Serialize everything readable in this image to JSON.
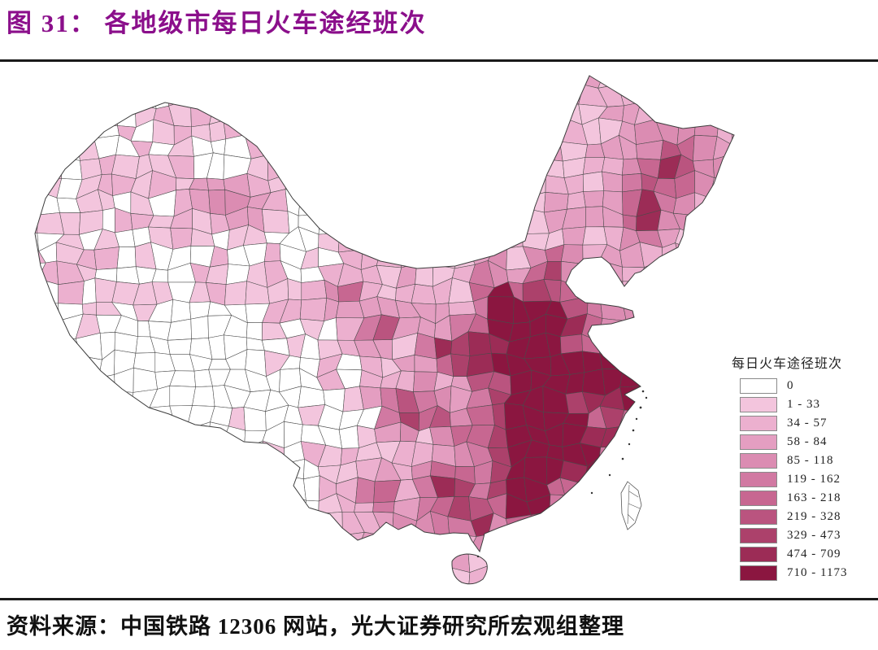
{
  "figure": {
    "title": "图 31： 各地级市每日火车途经班次"
  },
  "legend": {
    "title": "每日火车途径班次",
    "bins": [
      {
        "label": "0",
        "color": "#FFFFFF"
      },
      {
        "label": "1 - 33",
        "color": "#F3C5DD"
      },
      {
        "label": "34 - 57",
        "color": "#ECB0CF"
      },
      {
        "label": "58 - 84",
        "color": "#E49EC1"
      },
      {
        "label": "85 - 118",
        "color": "#DB8CB2"
      },
      {
        "label": "119 - 162",
        "color": "#D179A2"
      },
      {
        "label": "163 - 218",
        "color": "#C76791"
      },
      {
        "label": "219 - 328",
        "color": "#BA547F"
      },
      {
        "label": "329 - 473",
        "color": "#AC416B"
      },
      {
        "label": "474 - 709",
        "color": "#9C2C56"
      },
      {
        "label": "710 - 1173",
        "color": "#8B1640"
      }
    ]
  },
  "source": {
    "text": "资料来源：中国铁路 12306 网站，光大证券研究所宏观组整理"
  },
  "colors": {
    "title_accent": "#8B0F8B",
    "separator": "#1A1A1A",
    "boundary_line": "#4A4A4A"
  },
  "chart_data": {
    "type": "choropleth_map",
    "title": "各地级市每日火车途经班次",
    "region": "China, prefecture-level cities",
    "legend_title": "每日火车途径班次",
    "legend_position": "right",
    "bins": [
      {
        "range": "0",
        "color": "#FFFFFF"
      },
      {
        "range": "1 - 33",
        "color": "#F3C5DD"
      },
      {
        "range": "34 - 57",
        "color": "#ECB0CF"
      },
      {
        "range": "58 - 84",
        "color": "#E49EC1"
      },
      {
        "range": "85 - 118",
        "color": "#DB8CB2"
      },
      {
        "range": "119 - 162",
        "color": "#D179A2"
      },
      {
        "range": "163 - 218",
        "color": "#C76791"
      },
      {
        "range": "219 - 328",
        "color": "#BA547F"
      },
      {
        "range": "329 - 473",
        "color": "#AC416B"
      },
      {
        "range": "474 - 709",
        "color": "#9C2C56"
      },
      {
        "range": "710 - 1173",
        "color": "#8B1640"
      }
    ],
    "source": "资料来源：中国铁路 12306 网站，光大证券研究所宏观组整理"
  }
}
